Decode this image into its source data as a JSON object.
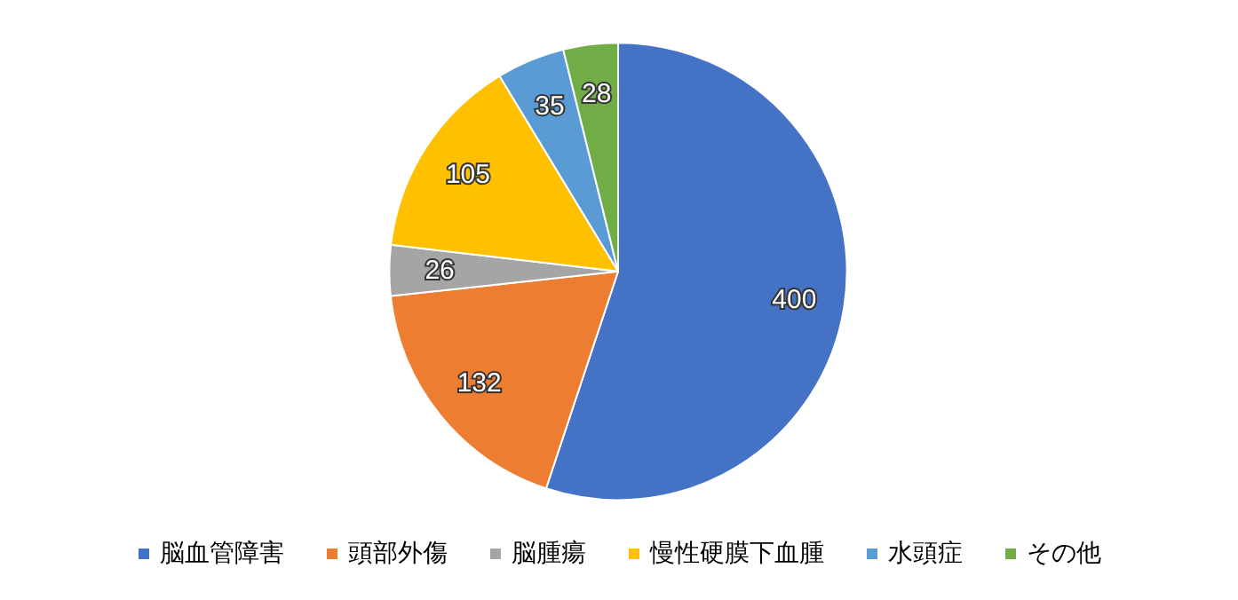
{
  "chart_data": {
    "type": "pie",
    "categories": [
      "脳血管障害",
      "頭部外傷",
      "脳腫瘍",
      "慢性硬膜下血腫",
      "水頭症",
      "その他"
    ],
    "values": [
      400,
      132,
      26,
      105,
      35,
      28
    ],
    "colors": [
      "#4472c4",
      "#ed7d31",
      "#a5a5a5",
      "#ffc000",
      "#5b9bd5",
      "#70ad47"
    ],
    "data_labels": true,
    "legend": "bottom"
  }
}
